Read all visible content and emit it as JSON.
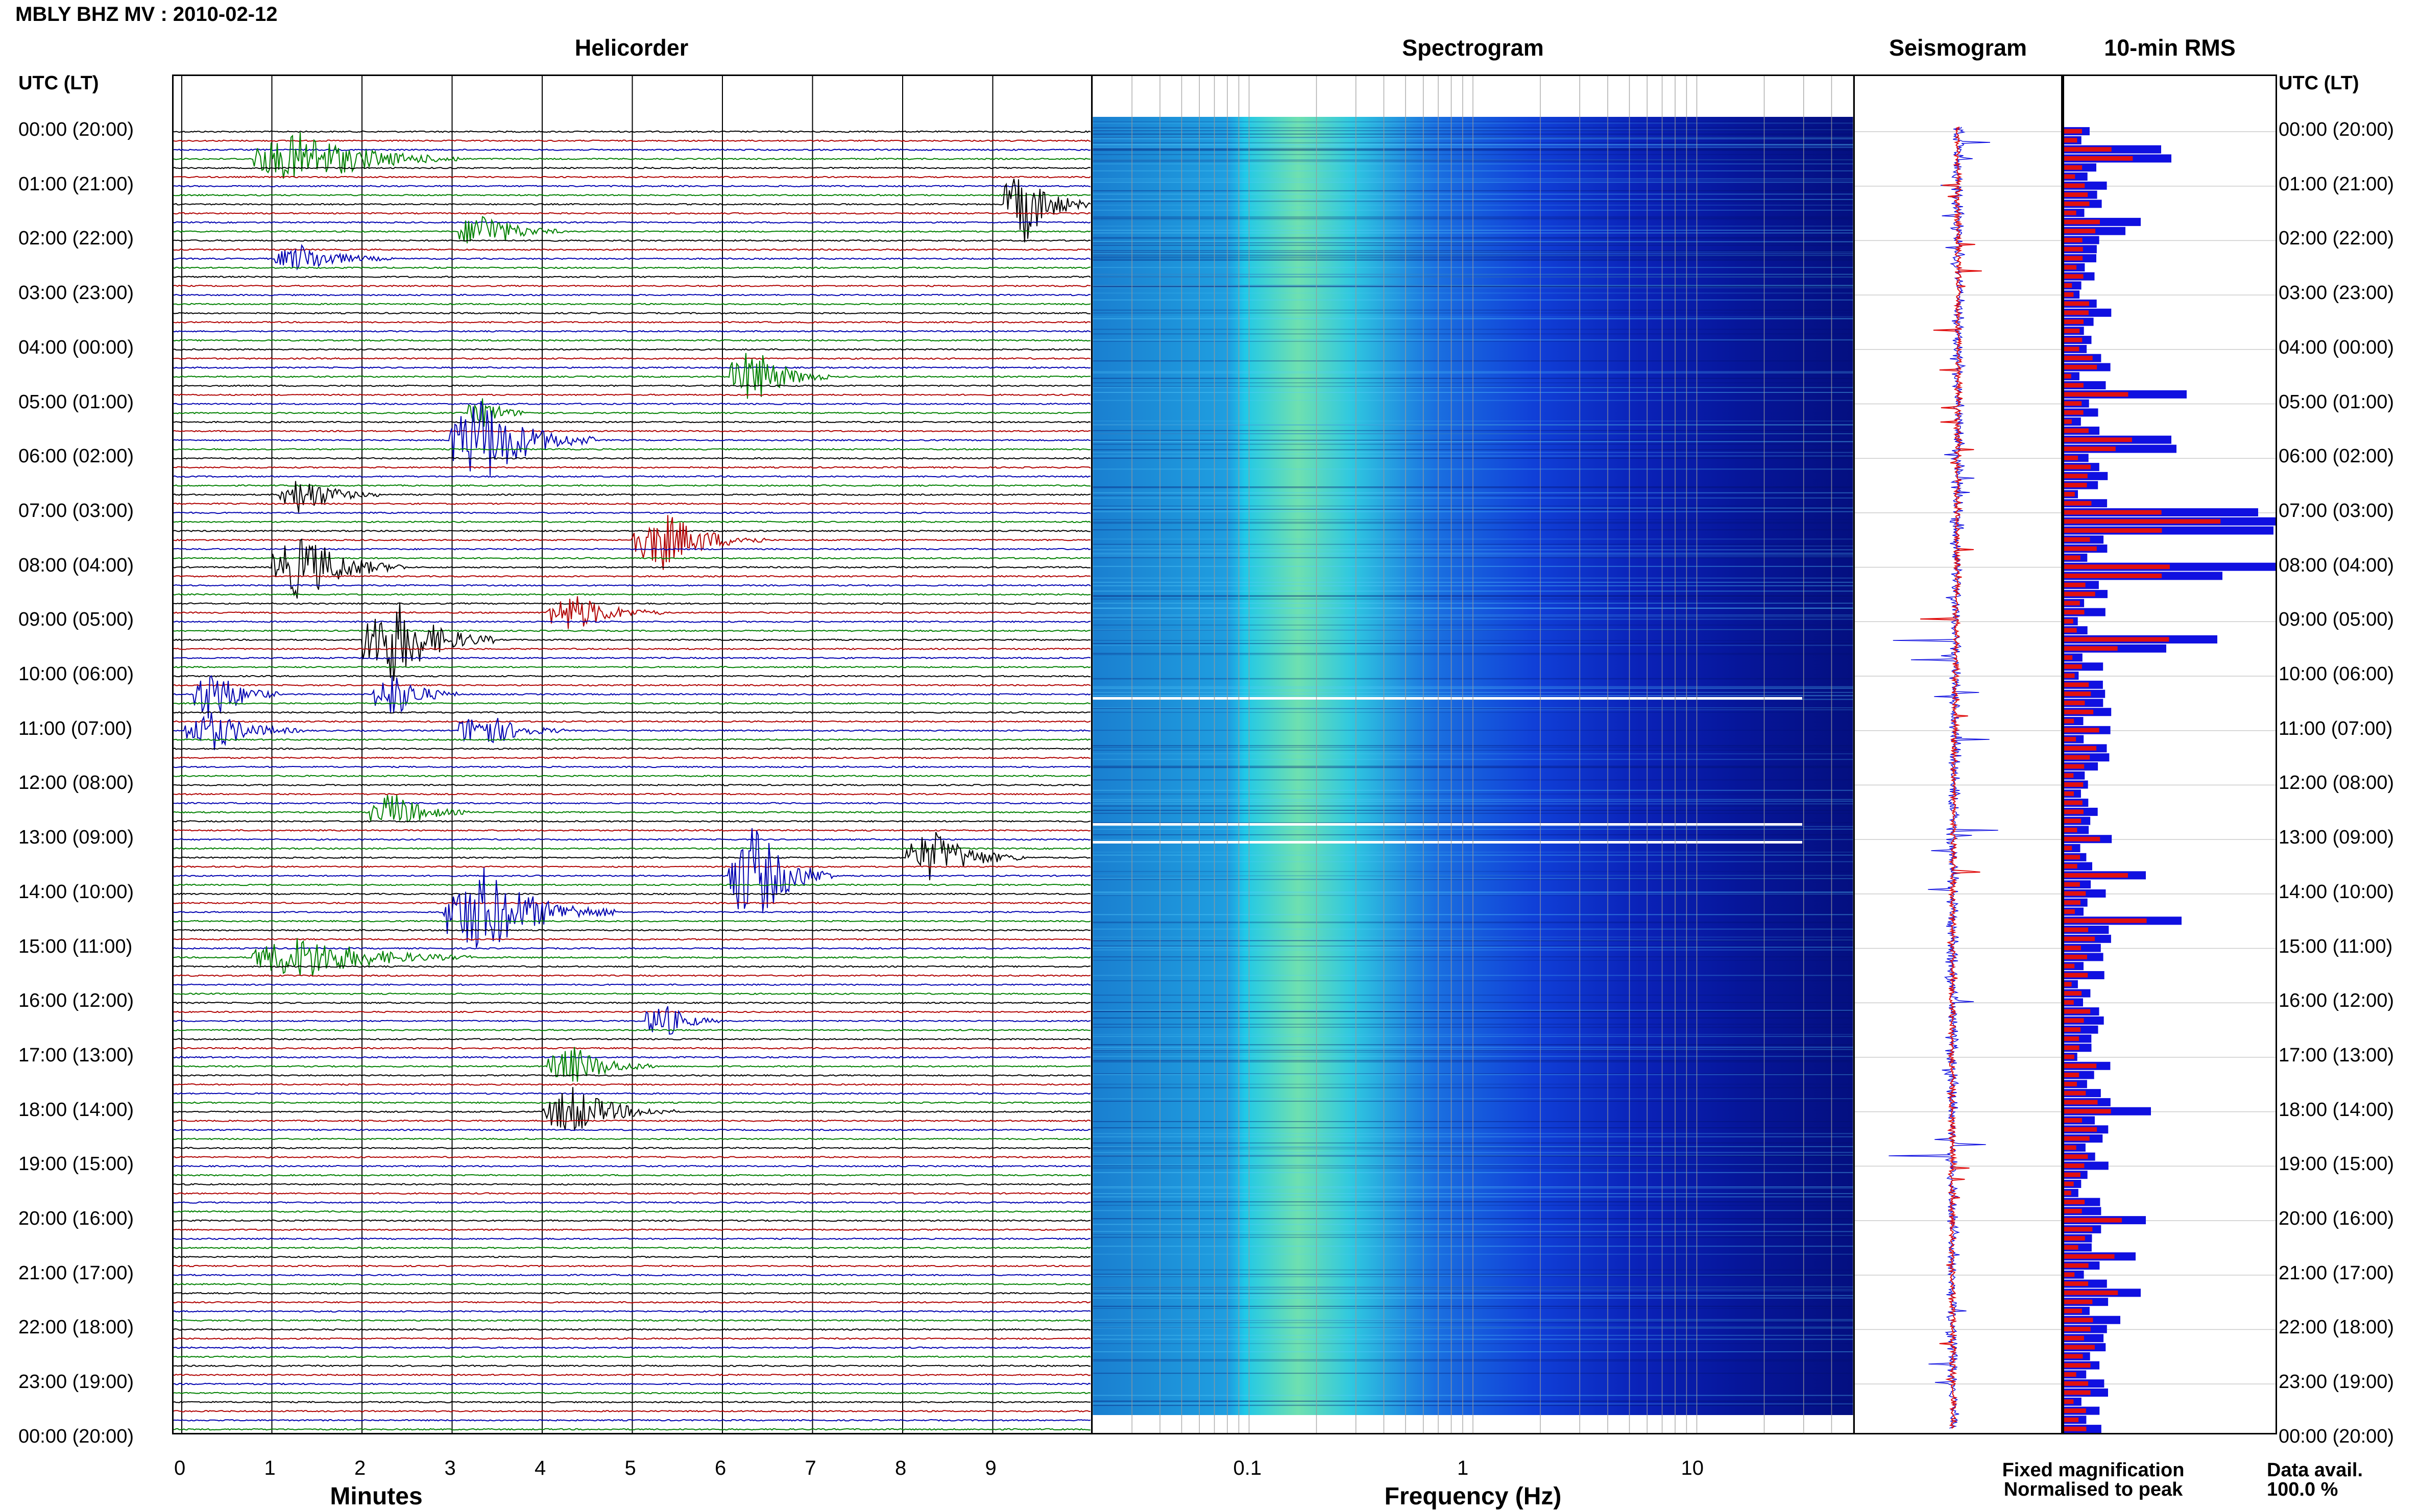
{
  "header": {
    "title": "MBLY BHZ MV : 2010-02-12"
  },
  "panels": {
    "helicorder": "Helicorder",
    "spectrogram": "Spectrogram",
    "seismogram": "Seismogram",
    "rms": "10-min RMS"
  },
  "axis": {
    "time_header_left": "UTC (LT)",
    "time_header_right": "UTC (LT)",
    "time_labels": [
      "00:00 (20:00)",
      "01:00 (21:00)",
      "02:00 (22:00)",
      "03:00 (23:00)",
      "04:00 (00:00)",
      "05:00 (01:00)",
      "06:00 (02:00)",
      "07:00 (03:00)",
      "08:00 (04:00)",
      "09:00 (05:00)",
      "10:00 (06:00)",
      "11:00 (07:00)",
      "12:00 (08:00)",
      "13:00 (09:00)",
      "14:00 (10:00)",
      "15:00 (11:00)",
      "16:00 (12:00)",
      "17:00 (13:00)",
      "18:00 (14:00)",
      "19:00 (15:00)",
      "20:00 (16:00)",
      "21:00 (17:00)",
      "22:00 (18:00)",
      "23:00 (19:00)",
      "00:00 (20:00)"
    ],
    "minutes_ticks": [
      "0",
      "1",
      "2",
      "3",
      "4",
      "5",
      "6",
      "7",
      "8",
      "9"
    ],
    "minutes_label": "Minutes",
    "freq_ticks": [
      "0.1",
      "1",
      "10"
    ],
    "freq_label": "Frequency (Hz)"
  },
  "legend": {
    "fixed": "Fixed magnification",
    "normalised": "Normalised to peak",
    "fixed_color": "#1010e0",
    "normalised_color": "#e01010"
  },
  "data_avail": {
    "label": "Data avail.",
    "value": "100.0 %"
  },
  "colors": {
    "trace_cycle": [
      "#000000",
      "#b00000",
      "#0000b0",
      "#008000"
    ]
  },
  "chart_data": [
    {
      "type": "helicorder",
      "title": "Helicorder",
      "xlabel": "Minutes",
      "xlim": [
        0,
        10
      ],
      "rows": 144,
      "row_minutes": 10
    },
    {
      "type": "heatmap",
      "title": "Spectrogram",
      "xlabel": "Frequency (Hz)",
      "xscale": "log",
      "xlim": [
        0.02,
        50
      ]
    },
    {
      "type": "line",
      "title": "Seismogram"
    },
    {
      "type": "bar",
      "title": "10-min RMS",
      "series": [
        {
          "name": "Fixed magnification"
        },
        {
          "name": "Normalised to peak"
        }
      ]
    }
  ]
}
